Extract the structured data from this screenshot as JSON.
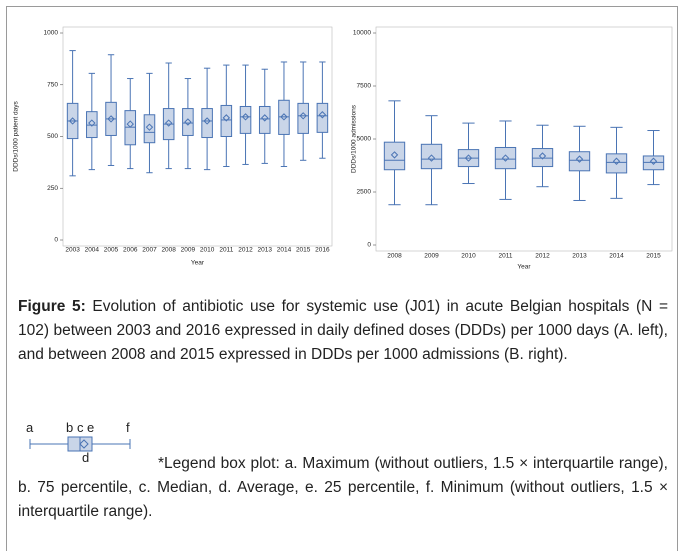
{
  "chart_data": [
    {
      "type": "box",
      "ylabel": "DDDs/1000 patient days",
      "xlabel": "Year",
      "categories": [
        "2003",
        "2004",
        "2005",
        "2006",
        "2007",
        "2008",
        "2009",
        "2010",
        "2011",
        "2012",
        "2013",
        "2014",
        "2015",
        "2016"
      ],
      "min": [
        310,
        340,
        360,
        345,
        325,
        345,
        345,
        340,
        355,
        365,
        370,
        355,
        385,
        395
      ],
      "q1": [
        490,
        495,
        505,
        460,
        470,
        485,
        505,
        495,
        500,
        515,
        515,
        510,
        515,
        520
      ],
      "median": [
        575,
        555,
        585,
        545,
        520,
        560,
        565,
        575,
        580,
        595,
        585,
        595,
        600,
        600
      ],
      "q3": [
        660,
        620,
        665,
        625,
        605,
        635,
        635,
        635,
        650,
        645,
        645,
        675,
        660,
        660
      ],
      "max": [
        915,
        805,
        895,
        780,
        805,
        855,
        780,
        830,
        845,
        845,
        825,
        860,
        860,
        860
      ],
      "mean": [
        575,
        565,
        585,
        560,
        545,
        565,
        570,
        575,
        590,
        595,
        590,
        595,
        600,
        605
      ],
      "color": "#4a74b4",
      "box_fill": "#c9d5e8",
      "ylim": [
        0,
        1000
      ],
      "yticks": [
        0,
        250,
        500,
        750,
        1000
      ]
    },
    {
      "type": "box",
      "ylabel": "DDDs/1000 admissions",
      "xlabel": "Year",
      "categories": [
        "2008",
        "2009",
        "2010",
        "2011",
        "2012",
        "2013",
        "2014",
        "2015"
      ],
      "min": [
        1900,
        1900,
        2900,
        2150,
        2750,
        2100,
        2200,
        2850
      ],
      "q1": [
        3550,
        3600,
        3700,
        3600,
        3700,
        3500,
        3400,
        3550
      ],
      "median": [
        4000,
        4050,
        4100,
        4050,
        4100,
        4000,
        3900,
        3900
      ],
      "q3": [
        4850,
        4750,
        4500,
        4600,
        4550,
        4400,
        4300,
        4200
      ],
      "max": [
        6800,
        6100,
        5750,
        5850,
        5650,
        5600,
        5550,
        5400
      ],
      "mean": [
        4250,
        4100,
        4100,
        4100,
        4200,
        4050,
        3950,
        3950
      ],
      "color": "#4a74b4",
      "box_fill": "#c9d5e8",
      "ylim": [
        0,
        10000
      ],
      "yticks": [
        0,
        2500,
        5000,
        7500,
        10000
      ]
    }
  ],
  "caption": {
    "label": "Figure 5:",
    "text": "Evolution of antibiotic use for systemic use (J01) in acute Belgian hospitals (N = 102) between 2003 and 2016 expressed in daily defined doses (DDDs) per 1000 days (A. left), and between 2008 and 2015 expressed in DDDs per 1000 admissions (B. right)."
  },
  "legend": {
    "letters": [
      "a",
      "b",
      "c",
      "e",
      "f",
      "d"
    ],
    "text": "*Legend box plot: a. Maximum (without outliers, 1.5 × interquartile range), b. 75 percentile, c. Median, d. Average, e. 25 percentile, f. Minimum (without outliers, 1.5 × interquartile range)."
  }
}
